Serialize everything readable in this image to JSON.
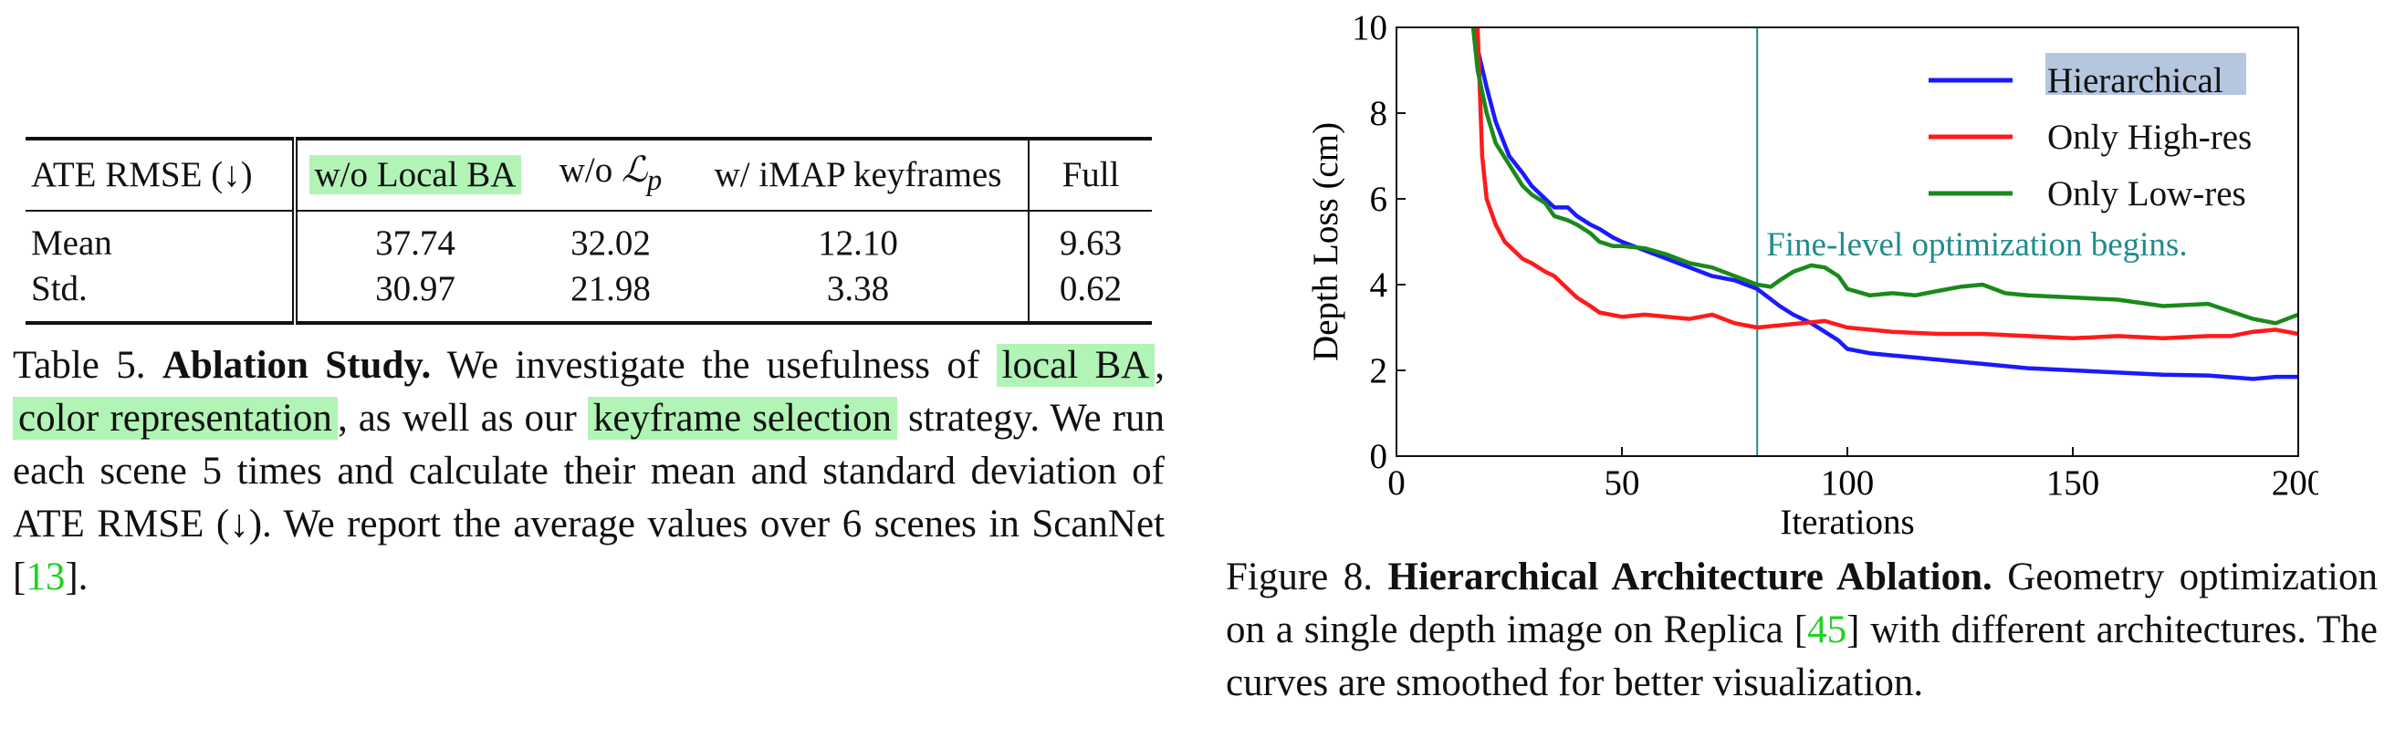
{
  "table": {
    "header": {
      "metric": "ATE RMSE (↓)",
      "col1": "w/o Local BA",
      "col2_prefix": "w/o ",
      "col2_symbol": "ℒ",
      "col2_sub": "p",
      "col3": "w/ iMAP keyframes",
      "col4": "Full"
    },
    "rows": [
      {
        "label": "Mean",
        "values": [
          "37.74",
          "32.02",
          "12.10",
          "9.63"
        ]
      },
      {
        "label": "Std.",
        "values": [
          "30.97",
          "21.98",
          "3.38",
          "0.62"
        ]
      }
    ],
    "caption": {
      "prefix": "Table 5. ",
      "bold": "Ablation Study.",
      "t1": " We investigate the usefulness of ",
      "hl1": "local BA",
      "t2": ", ",
      "hl2": "color representation",
      "t3": ", as well as our ",
      "hl3": "keyframe selection",
      "t4": " strategy. We run each scene 5 times and calculate their mean and standard deviation of ATE RMSE (↓). We report the average values over 6 scenes in ScanNet [",
      "cite": "13",
      "t5": "]."
    }
  },
  "figure": {
    "caption": {
      "prefix": "Figure 8. ",
      "bold": "Hierarchical Architecture Ablation.",
      "t1": " Geometry optimization on a single depth image on Replica [",
      "cite": "45",
      "t2": "] with different architectures. The curves are smoothed for better visualization."
    }
  },
  "chart_data": {
    "type": "line",
    "xlabel": "Iterations",
    "ylabel": "Depth Loss (cm)",
    "xlim": [
      0,
      200
    ],
    "ylim": [
      0,
      10
    ],
    "xticks": [
      0,
      50,
      100,
      150,
      200
    ],
    "yticks": [
      0,
      2,
      4,
      6,
      8,
      10
    ],
    "grid": false,
    "legend_position": "top-right",
    "vline": {
      "x": 80,
      "label": "Fine-level optimization begins.",
      "color": "#1f8c8c"
    },
    "series": [
      {
        "name": "Hierarchical",
        "color": "#1a1aff",
        "highlight": true,
        "x": [
          17,
          18,
          20,
          22,
          25,
          28,
          30,
          33,
          35,
          38,
          40,
          43,
          45,
          48,
          50,
          55,
          60,
          65,
          70,
          75,
          80,
          85,
          88,
          92,
          95,
          98,
          100,
          105,
          110,
          115,
          120,
          130,
          140,
          150,
          160,
          170,
          180,
          190,
          195,
          200
        ],
        "y": [
          10.0,
          9.5,
          8.6,
          7.8,
          7.0,
          6.6,
          6.3,
          6.0,
          5.8,
          5.8,
          5.6,
          5.4,
          5.3,
          5.1,
          5.0,
          4.8,
          4.6,
          4.4,
          4.2,
          4.1,
          3.9,
          3.5,
          3.3,
          3.1,
          2.9,
          2.7,
          2.5,
          2.4,
          2.35,
          2.3,
          2.25,
          2.15,
          2.05,
          2.0,
          1.95,
          1.9,
          1.88,
          1.8,
          1.85,
          1.85
        ]
      },
      {
        "name": "Only High-res",
        "color": "#ff1a1a",
        "x": [
          18,
          19,
          20,
          22,
          24,
          26,
          28,
          30,
          33,
          35,
          38,
          40,
          43,
          45,
          50,
          55,
          60,
          65,
          70,
          75,
          80,
          85,
          90,
          95,
          100,
          110,
          120,
          130,
          140,
          150,
          160,
          170,
          180,
          185,
          190,
          195,
          200
        ],
        "y": [
          10.0,
          7.0,
          6.0,
          5.4,
          5.0,
          4.8,
          4.6,
          4.5,
          4.3,
          4.2,
          3.9,
          3.7,
          3.5,
          3.35,
          3.25,
          3.3,
          3.25,
          3.2,
          3.3,
          3.1,
          3.0,
          3.05,
          3.1,
          3.15,
          3.0,
          2.9,
          2.85,
          2.85,
          2.8,
          2.75,
          2.8,
          2.75,
          2.8,
          2.8,
          2.9,
          2.95,
          2.85
        ]
      },
      {
        "name": "Only Low-res",
        "color": "#1a8a1a",
        "x": [
          17,
          18,
          20,
          22,
          25,
          28,
          30,
          33,
          35,
          38,
          40,
          43,
          45,
          48,
          50,
          55,
          60,
          65,
          70,
          75,
          80,
          83,
          85,
          88,
          92,
          95,
          98,
          100,
          105,
          110,
          115,
          120,
          125,
          130,
          135,
          140,
          150,
          160,
          170,
          180,
          190,
          195,
          200
        ],
        "y": [
          10.0,
          9.0,
          8.0,
          7.3,
          6.8,
          6.3,
          6.1,
          5.9,
          5.6,
          5.5,
          5.4,
          5.2,
          5.0,
          4.9,
          4.9,
          4.85,
          4.7,
          4.5,
          4.4,
          4.2,
          4.0,
          3.95,
          4.1,
          4.3,
          4.45,
          4.4,
          4.2,
          3.9,
          3.75,
          3.8,
          3.75,
          3.85,
          3.95,
          4.0,
          3.8,
          3.75,
          3.7,
          3.65,
          3.5,
          3.55,
          3.2,
          3.1,
          3.3
        ]
      }
    ]
  }
}
